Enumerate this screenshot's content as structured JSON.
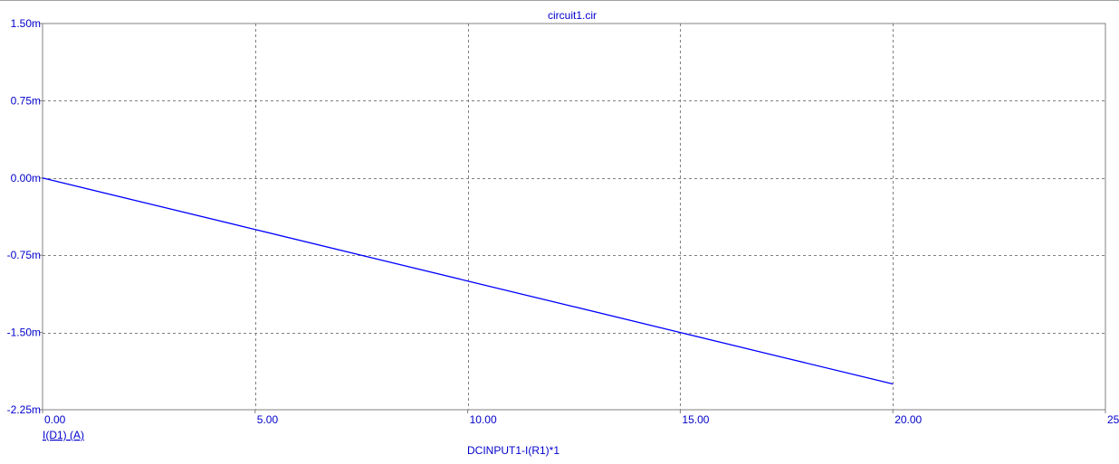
{
  "chart_data": {
    "type": "line",
    "title": "circuit1.cir",
    "xlabel": "DCINPUT1-I(R1)*1",
    "ylabel": "",
    "xlim": [
      0,
      25
    ],
    "ylim": [
      -2.25,
      1.5
    ],
    "x_tick_values": [
      0,
      5,
      10,
      15,
      20,
      25
    ],
    "x_tick_labels": [
      "0.00",
      "5.00",
      "10.00",
      "15.00",
      "20.00",
      "25.00"
    ],
    "y_tick_values": [
      1.5,
      0.75,
      0,
      -0.75,
      -1.5,
      -2.25
    ],
    "y_tick_labels": [
      "1.50m",
      "0.75m",
      "0.00m",
      "-0.75m",
      "-1.50m",
      "-2.25m"
    ],
    "grid": true,
    "series": [
      {
        "name": "I(D1) (A)",
        "x": [
          0,
          2.5,
          5,
          7.5,
          10,
          12.5,
          15,
          17.5,
          20
        ],
        "y": [
          0,
          -0.25,
          -0.5,
          -0.75,
          -1.0,
          -1.25,
          -1.5,
          -1.75,
          -2.0
        ]
      }
    ]
  },
  "colors": {
    "axis_text": "#0000cc",
    "series": "#0000ff",
    "grid": "#808080",
    "frame": "#808080"
  }
}
